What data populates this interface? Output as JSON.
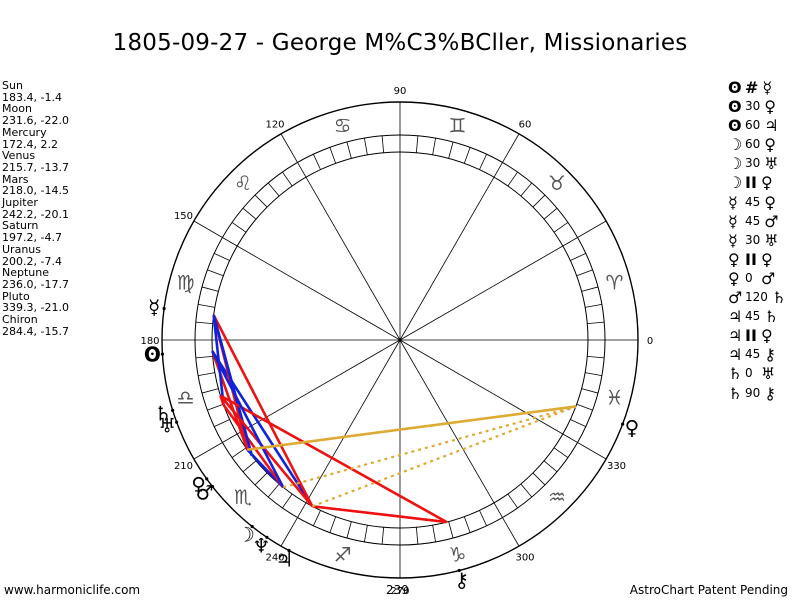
{
  "title": "1805-09-27 - George M%C3%BCller, Missionaries",
  "planet_positions": [
    {
      "name": "Sun",
      "coords": "183.4, -1.4"
    },
    {
      "name": "Moon",
      "coords": "231.6, -22.0"
    },
    {
      "name": "Mercury",
      "coords": "172.4, 2.2"
    },
    {
      "name": "Venus",
      "coords": "215.7, -13.7"
    },
    {
      "name": "Mars",
      "coords": "218.0, -14.5"
    },
    {
      "name": "Jupiter",
      "coords": "242.2, -20.1"
    },
    {
      "name": "Saturn",
      "coords": "197.2, -4.7"
    },
    {
      "name": "Uranus",
      "coords": "200.2, -7.4"
    },
    {
      "name": "Neptune",
      "coords": "236.0, -17.7"
    },
    {
      "name": "Pluto",
      "coords": "339.3, -21.0"
    },
    {
      "name": "Chiron",
      "coords": "284.4, -15.7"
    }
  ],
  "aspects": [
    {
      "p1": "sun-icon",
      "g1": "ʘ",
      "angle": "#",
      "p2": "mercury-icon",
      "g2": "☿"
    },
    {
      "p1": "sun-icon",
      "g1": "ʘ",
      "angle": "30",
      "p2": "venus-icon",
      "g2": "♀"
    },
    {
      "p1": "sun-icon",
      "g1": "ʘ",
      "angle": "60",
      "p2": "jupiter-icon",
      "g2": "♃"
    },
    {
      "p1": "moon-icon",
      "g1": "☽",
      "angle": "60",
      "p2": "venus-icon",
      "g2": "♀"
    },
    {
      "p1": "moon-icon",
      "g1": "☽",
      "angle": "30",
      "p2": "uranus-icon",
      "g2": "♅"
    },
    {
      "p1": "moon-icon",
      "g1": "☽",
      "angle": "II",
      "p2": "venus-icon",
      "g2": "♀"
    },
    {
      "p1": "mercury-icon",
      "g1": "☿",
      "angle": "45",
      "p2": "venus-icon",
      "g2": "♀"
    },
    {
      "p1": "mercury-icon",
      "g1": "☿",
      "angle": "45",
      "p2": "mars-icon",
      "g2": "♂"
    },
    {
      "p1": "mercury-icon",
      "g1": "☿",
      "angle": "30",
      "p2": "uranus-icon",
      "g2": "♅"
    },
    {
      "p1": "venus-icon",
      "g1": "♀",
      "angle": "II",
      "p2": "venus-icon",
      "g2": "♀"
    },
    {
      "p1": "venus-icon",
      "g1": "♀",
      "angle": "0",
      "p2": "mars-icon",
      "g2": "♂"
    },
    {
      "p1": "mars-icon",
      "g1": "♂",
      "angle": "120",
      "p2": "saturn-icon",
      "g2": "♄"
    },
    {
      "p1": "jupiter-icon",
      "g1": "♃",
      "angle": "45",
      "p2": "saturn-icon",
      "g2": "♄"
    },
    {
      "p1": "jupiter-icon",
      "g1": "♃",
      "angle": "II",
      "p2": "venus-icon",
      "g2": "♀"
    },
    {
      "p1": "jupiter-icon",
      "g1": "♃",
      "angle": "45",
      "p2": "chiron-icon",
      "g2": "⚷"
    },
    {
      "p1": "saturn-icon",
      "g1": "♄",
      "angle": "0",
      "p2": "uranus-icon",
      "g2": "♅"
    },
    {
      "p1": "saturn-icon",
      "g1": "♄",
      "angle": "90",
      "p2": "chiron-icon",
      "g2": "⚷"
    }
  ],
  "wheel": {
    "degree_labels": [
      {
        "deg": 0,
        "text": "0"
      },
      {
        "deg": 30,
        "text": ""
      },
      {
        "deg": 60,
        "text": "60"
      },
      {
        "deg": 90,
        "text": "90"
      },
      {
        "deg": 120,
        "text": "120"
      },
      {
        "deg": 150,
        "text": "150"
      },
      {
        "deg": 180,
        "text": "180"
      },
      {
        "deg": 210,
        "text": "210"
      },
      {
        "deg": 240,
        "text": "240"
      },
      {
        "deg": 270,
        "text": "270"
      },
      {
        "deg": 300,
        "text": "300"
      },
      {
        "deg": 330,
        "text": "330"
      }
    ],
    "zodiac_signs": [
      {
        "name": "aries-icon",
        "glyph": "♈",
        "deg": 15,
        "color": "#555555"
      },
      {
        "name": "taurus-icon",
        "glyph": "♉",
        "deg": 45,
        "color": "#555555"
      },
      {
        "name": "gemini-icon",
        "glyph": "♊",
        "deg": 75,
        "color": "#555555"
      },
      {
        "name": "cancer-icon",
        "glyph": "♋",
        "deg": 105,
        "color": "#555555"
      },
      {
        "name": "leo-icon",
        "glyph": "♌",
        "deg": 135,
        "color": "#555555"
      },
      {
        "name": "virgo-icon",
        "glyph": "♍",
        "deg": 165,
        "color": "#555555"
      },
      {
        "name": "libra-icon",
        "glyph": "♎",
        "deg": 195,
        "color": "#555555"
      },
      {
        "name": "scorpio-icon",
        "glyph": "♏",
        "deg": 225,
        "color": "#555555"
      },
      {
        "name": "sagittarius-icon",
        "glyph": "♐",
        "deg": 255,
        "color": "#555555"
      },
      {
        "name": "capricorn-icon",
        "glyph": "♑",
        "deg": 285,
        "color": "#555555"
      },
      {
        "name": "aquarius-icon",
        "glyph": "♒",
        "deg": 315,
        "color": "#555555"
      },
      {
        "name": "pisces-icon",
        "glyph": "♓",
        "deg": 345,
        "color": "#555555"
      }
    ],
    "planets": [
      {
        "name": "sun-icon",
        "glyph": "ʘ",
        "deg": 183.4
      },
      {
        "name": "moon-icon",
        "glyph": "☽",
        "deg": 231.6
      },
      {
        "name": "mercury-icon",
        "glyph": "☿",
        "deg": 172.4
      },
      {
        "name": "venus-icon",
        "glyph": "♀",
        "deg": 215.7
      },
      {
        "name": "mars-icon",
        "glyph": "♂",
        "deg": 218.0
      },
      {
        "name": "jupiter-icon",
        "glyph": "♃",
        "deg": 242.2
      },
      {
        "name": "saturn-icon",
        "glyph": "♄",
        "deg": 197.2
      },
      {
        "name": "uranus-icon",
        "glyph": "♅",
        "deg": 200.2
      },
      {
        "name": "neptune-icon",
        "glyph": "♆",
        "deg": 236.0
      },
      {
        "name": "pluto-icon",
        "glyph": "♀",
        "deg": 339.3
      },
      {
        "name": "chiron-icon",
        "glyph": "⚷",
        "deg": 284.4
      }
    ],
    "aspect_lines": [
      {
        "from": 183.4,
        "to": 215.7,
        "color": "#ee1111",
        "style": "solid"
      },
      {
        "from": 183.4,
        "to": 242.2,
        "color": "#1122dd",
        "style": "solid"
      },
      {
        "from": 231.6,
        "to": 215.7,
        "color": "#1122dd",
        "style": "solid"
      },
      {
        "from": 231.6,
        "to": 200.2,
        "color": "#ee1111",
        "style": "solid"
      },
      {
        "from": 172.4,
        "to": 215.7,
        "color": "#ee1111",
        "style": "solid"
      },
      {
        "from": 172.4,
        "to": 218.0,
        "color": "#1122dd",
        "style": "solid"
      },
      {
        "from": 172.4,
        "to": 200.2,
        "color": "#1122dd",
        "style": "solid"
      },
      {
        "from": 172.4,
        "to": 242.2,
        "color": "#ee1111",
        "style": "solid"
      },
      {
        "from": 218.0,
        "to": 172.4,
        "color": "#1122dd",
        "style": "solid"
      },
      {
        "from": 242.2,
        "to": 197.2,
        "color": "#ee1111",
        "style": "solid"
      },
      {
        "from": 242.2,
        "to": 284.4,
        "color": "#ee1111",
        "style": "solid"
      },
      {
        "from": 197.2,
        "to": 284.4,
        "color": "#ee1111",
        "style": "solid"
      },
      {
        "from": 197.2,
        "to": 200.2,
        "color": "#ee1111",
        "style": "solid"
      },
      {
        "from": 183.4,
        "to": 231.6,
        "color": "#1122dd",
        "style": "solid"
      },
      {
        "from": 215.7,
        "to": 339.3,
        "color": "#ddaa33",
        "style": "solid"
      },
      {
        "from": 231.6,
        "to": 339.3,
        "color": "#ddaa33",
        "style": "dotted"
      },
      {
        "from": 242.2,
        "to": 339.3,
        "color": "#ddaa33",
        "style": "dotted"
      }
    ]
  },
  "footer": {
    "left": "www.harmoniclife.com",
    "center": "239",
    "right": "AstroChart Patent Pending"
  }
}
